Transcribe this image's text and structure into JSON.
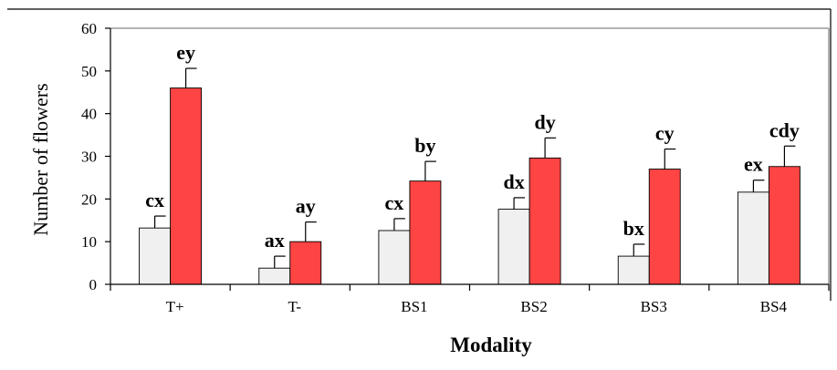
{
  "chart_data": {
    "type": "bar",
    "xlabel": "Modality",
    "ylabel": "Number of flowers",
    "ylim": [
      0,
      60
    ],
    "yticks": [
      0,
      10,
      20,
      30,
      40,
      50,
      60
    ],
    "categories": [
      "T+",
      "T-",
      "BS1",
      "BS2",
      "BS3",
      "BS4"
    ],
    "series": [
      {
        "color": "#f0f0f0",
        "values": [
          13.2,
          3.8,
          12.6,
          17.6,
          6.6,
          21.6
        ],
        "errors": [
          2.8,
          2.8,
          2.8,
          2.7,
          2.8,
          2.8
        ],
        "labels": [
          "cx",
          "ax",
          "cx",
          "dx",
          "bx",
          "ex"
        ]
      },
      {
        "color": "#ff4444",
        "values": [
          46.0,
          10.0,
          24.2,
          29.6,
          27.0,
          27.6
        ],
        "errors": [
          4.6,
          4.6,
          4.6,
          4.7,
          4.7,
          4.8
        ],
        "labels": [
          "ey",
          "ay",
          "by",
          "dy",
          "cy",
          "cdy"
        ]
      }
    ],
    "grid": false,
    "legend": "none"
  }
}
